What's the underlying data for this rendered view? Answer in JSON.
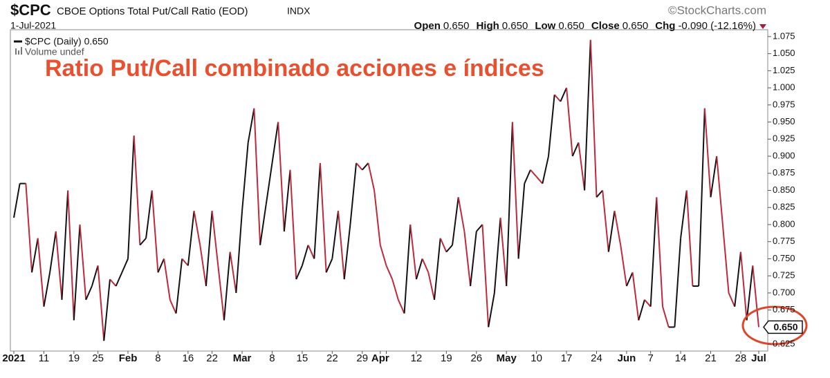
{
  "chart_data": {
    "type": "line",
    "symbol": "$CPC",
    "title": "CBOE Options Total Put/Call Ratio (EOD)",
    "exchange": "INDX",
    "date": "1-Jul-2021",
    "source": "©StockCharts.com",
    "stats": [
      {
        "label": "Open",
        "value": "0.650"
      },
      {
        "label": "High",
        "value": "0.650"
      },
      {
        "label": "Low",
        "value": "0.650"
      },
      {
        "label": "Close",
        "value": "0.650"
      },
      {
        "label": "Chg",
        "value": "-0.090 (-12.16%)"
      }
    ],
    "annotation": "Ratio Put/Call combinado acciones e índices",
    "volume_note": "Volume undef",
    "last_value_label": "0.650",
    "up_color": "#111111",
    "down_color": "#c0283a",
    "categories": [
      "2021",
      null,
      null,
      null,
      null,
      "11",
      null,
      null,
      null,
      null,
      "19",
      null,
      null,
      null,
      "25",
      null,
      null,
      null,
      null,
      "Feb",
      null,
      null,
      null,
      null,
      "8",
      null,
      null,
      null,
      null,
      "16",
      null,
      null,
      null,
      "22",
      null,
      null,
      null,
      null,
      "Mar",
      null,
      null,
      null,
      null,
      "8",
      null,
      null,
      null,
      null,
      "15",
      null,
      null,
      null,
      null,
      "22",
      null,
      null,
      null,
      null,
      "29",
      null,
      null,
      "Apr",
      "",
      null,
      null,
      null,
      null,
      "12",
      null,
      null,
      null,
      null,
      "19",
      null,
      null,
      null,
      null,
      "26",
      null,
      null,
      null,
      null,
      "May",
      null,
      null,
      null,
      null,
      "10",
      null,
      null,
      null,
      null,
      "17",
      null,
      null,
      null,
      null,
      "24",
      null,
      null,
      null,
      null,
      "Jun",
      null,
      null,
      null,
      "7",
      null,
      null,
      null,
      null,
      "14",
      null,
      null,
      null,
      null,
      "21",
      null,
      null,
      null,
      null,
      "28",
      null,
      null,
      "Jul"
    ],
    "series": [
      {
        "name": "$CPC (Daily) 0.650",
        "values": [
          0.81,
          0.86,
          0.86,
          0.73,
          0.78,
          0.68,
          0.73,
          0.79,
          0.69,
          0.85,
          0.66,
          0.8,
          0.69,
          0.71,
          0.74,
          0.63,
          0.72,
          0.71,
          0.73,
          0.75,
          0.93,
          0.77,
          0.78,
          0.85,
          0.73,
          0.75,
          0.69,
          0.67,
          0.75,
          0.74,
          0.82,
          0.77,
          0.71,
          0.82,
          0.74,
          0.66,
          0.76,
          0.7,
          0.82,
          0.92,
          0.97,
          0.77,
          0.83,
          0.89,
          0.95,
          0.79,
          0.88,
          0.72,
          0.74,
          0.77,
          0.75,
          0.89,
          0.73,
          0.75,
          0.82,
          0.72,
          0.8,
          0.89,
          0.88,
          0.89,
          0.85,
          0.77,
          0.74,
          0.72,
          0.69,
          0.67,
          0.8,
          0.72,
          0.75,
          0.73,
          0.69,
          0.78,
          0.76,
          0.77,
          0.84,
          0.79,
          0.71,
          0.79,
          0.8,
          0.65,
          0.7,
          0.81,
          0.71,
          0.95,
          0.75,
          0.86,
          0.88,
          0.87,
          0.86,
          0.9,
          0.99,
          0.98,
          1.0,
          0.9,
          0.92,
          0.85,
          1.07,
          0.84,
          0.85,
          0.76,
          0.82,
          0.77,
          0.71,
          0.73,
          0.66,
          0.69,
          0.68,
          0.84,
          0.68,
          0.65,
          0.65,
          0.78,
          0.85,
          0.71,
          0.71,
          0.97,
          0.84,
          0.9,
          0.8,
          0.7,
          0.68,
          0.76,
          0.66,
          0.74,
          0.65
        ]
      }
    ],
    "ylim": [
      0.615,
      1.085
    ],
    "yticks": [
      {
        "value": 0.625,
        "label": "0.625"
      },
      {
        "value": 0.65,
        "label": "0.650"
      },
      {
        "value": 0.675,
        "label": "0.675"
      },
      {
        "value": 0.7,
        "label": "0.700"
      },
      {
        "value": 0.725,
        "label": "0.725"
      },
      {
        "value": 0.75,
        "label": "0.750"
      },
      {
        "value": 0.775,
        "label": "0.775"
      },
      {
        "value": 0.8,
        "label": "0.800"
      },
      {
        "value": 0.825,
        "label": "0.825"
      },
      {
        "value": 0.85,
        "label": "0.850"
      },
      {
        "value": 0.875,
        "label": "0.875"
      },
      {
        "value": 0.9,
        "label": "0.900"
      },
      {
        "value": 0.925,
        "label": "0.925"
      },
      {
        "value": 0.95,
        "label": "0.950"
      },
      {
        "value": 0.975,
        "label": "0.975"
      },
      {
        "value": 1.0,
        "label": "1.000"
      },
      {
        "value": 1.025,
        "label": "1.025"
      },
      {
        "value": 1.05,
        "label": "1.050"
      },
      {
        "value": 1.075,
        "label": "1.075"
      }
    ]
  }
}
